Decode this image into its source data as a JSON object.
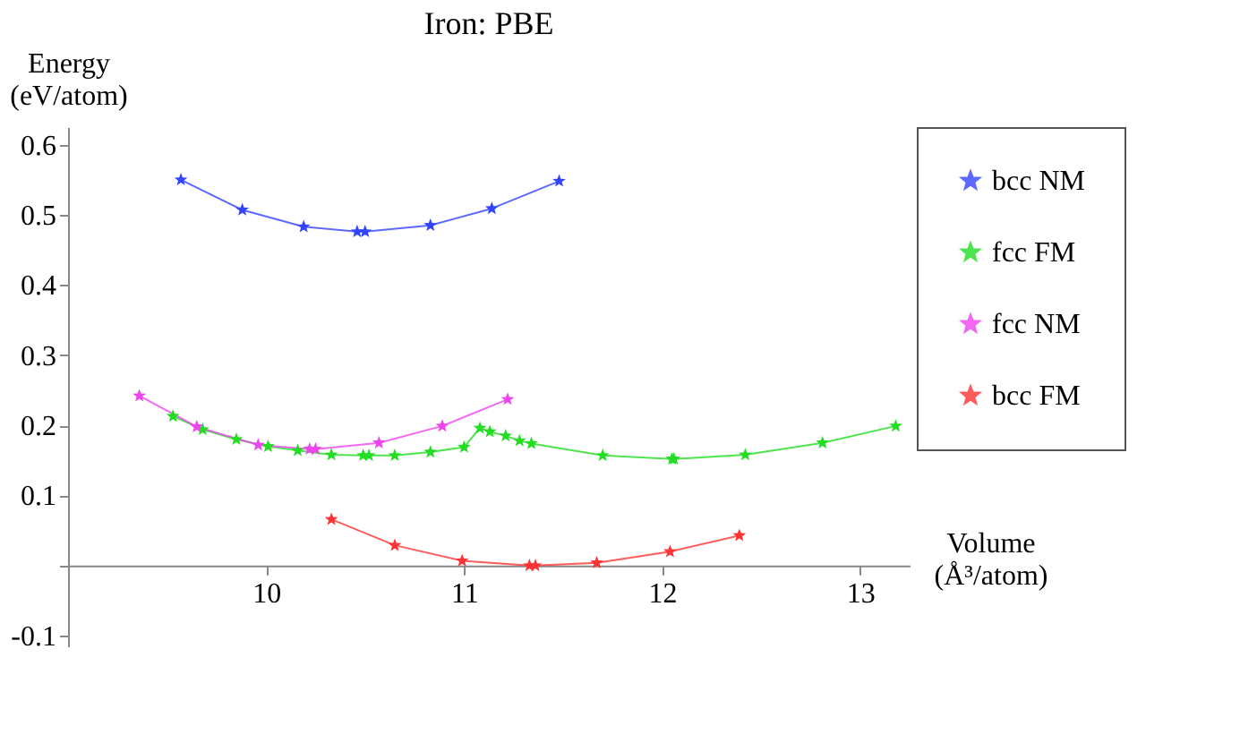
{
  "chart_data": {
    "type": "line",
    "title": "Iron: PBE",
    "xlabel": "Volume (Å³/atom)",
    "ylabel": "Energy (eV/atom)",
    "xlim": [
      9,
      13.25
    ],
    "ylim": [
      -0.115,
      0.625
    ],
    "xticks": [
      10,
      11,
      12,
      13
    ],
    "yticks": [
      -0.1,
      {
        "value": 0,
        "label": null
      },
      0.1,
      0.2,
      0.3,
      0.4,
      0.5,
      0.6
    ],
    "grid": false,
    "legend": "right",
    "marker": "star",
    "line_style": "solid",
    "series": [
      {
        "name": "bcc NM",
        "color": "#3344ff",
        "x": [
          9.57,
          9.88,
          10.19,
          10.46,
          10.5,
          10.83,
          11.14,
          11.48
        ],
        "values": [
          0.55,
          0.507,
          0.483,
          0.476,
          0.476,
          0.485,
          0.509,
          0.548
        ]
      },
      {
        "name": "fcc FM",
        "color": "#22dd22",
        "x": [
          9.53,
          9.68,
          9.85,
          10.01,
          10.16,
          10.33,
          10.49,
          10.52,
          10.65,
          10.83,
          11.0,
          11.08,
          11.13,
          11.21,
          11.28,
          11.34,
          11.7,
          12.05,
          12.06,
          12.42,
          12.81,
          13.18
        ],
        "values": [
          0.213,
          0.194,
          0.18,
          0.17,
          0.164,
          0.158,
          0.157,
          0.157,
          0.157,
          0.162,
          0.169,
          0.196,
          0.191,
          0.185,
          0.178,
          0.174,
          0.157,
          0.152,
          0.152,
          0.158,
          0.175,
          0.199
        ]
      },
      {
        "name": "fcc NM",
        "color": "#ee44ee",
        "x": [
          9.36,
          9.65,
          9.96,
          10.22,
          10.25,
          10.57,
          10.89,
          11.22
        ],
        "values": [
          0.242,
          0.198,
          0.172,
          0.166,
          0.166,
          0.175,
          0.199,
          0.237
        ]
      },
      {
        "name": "bcc FM",
        "color": "#ff3333",
        "x": [
          10.33,
          10.65,
          10.99,
          11.33,
          11.36,
          11.67,
          12.04,
          12.39
        ],
        "values": [
          0.066,
          0.029,
          0.007,
          0.0,
          0.0,
          0.004,
          0.02,
          0.043
        ]
      }
    ]
  }
}
